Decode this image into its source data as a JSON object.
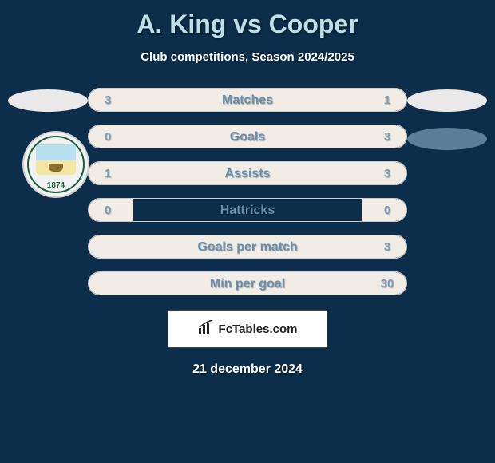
{
  "header": {
    "title": "A. King vs Cooper",
    "subtitle": "Club competitions, Season 2024/2025"
  },
  "colors": {
    "background": "#0d2e4a",
    "title_color": "#bde0e8",
    "bar_fill": "#f1ece5",
    "bar_border": "#cccccc",
    "stat_label_color": "#6a8fb0",
    "oval_light": "#e9e9e9",
    "oval_dark": "#5c7e98"
  },
  "badge": {
    "year": "1874"
  },
  "stats": [
    {
      "label": "Matches",
      "left_val": "3",
      "right_val": "1",
      "left_pct": 75,
      "right_pct": 25
    },
    {
      "label": "Goals",
      "left_val": "0",
      "right_val": "3",
      "left_pct": 14,
      "right_pct": 86
    },
    {
      "label": "Assists",
      "left_val": "1",
      "right_val": "3",
      "left_pct": 25,
      "right_pct": 75
    },
    {
      "label": "Hattricks",
      "left_val": "0",
      "right_val": "0",
      "left_pct": 14,
      "right_pct": 14
    },
    {
      "label": "Goals per match",
      "left_val": "",
      "right_val": "3",
      "left_pct": 14,
      "right_pct": 86
    },
    {
      "label": "Min per goal",
      "left_val": "",
      "right_val": "30",
      "left_pct": 14,
      "right_pct": 86
    }
  ],
  "footer": {
    "brand": "FcTables.com",
    "date": "21 december 2024"
  }
}
